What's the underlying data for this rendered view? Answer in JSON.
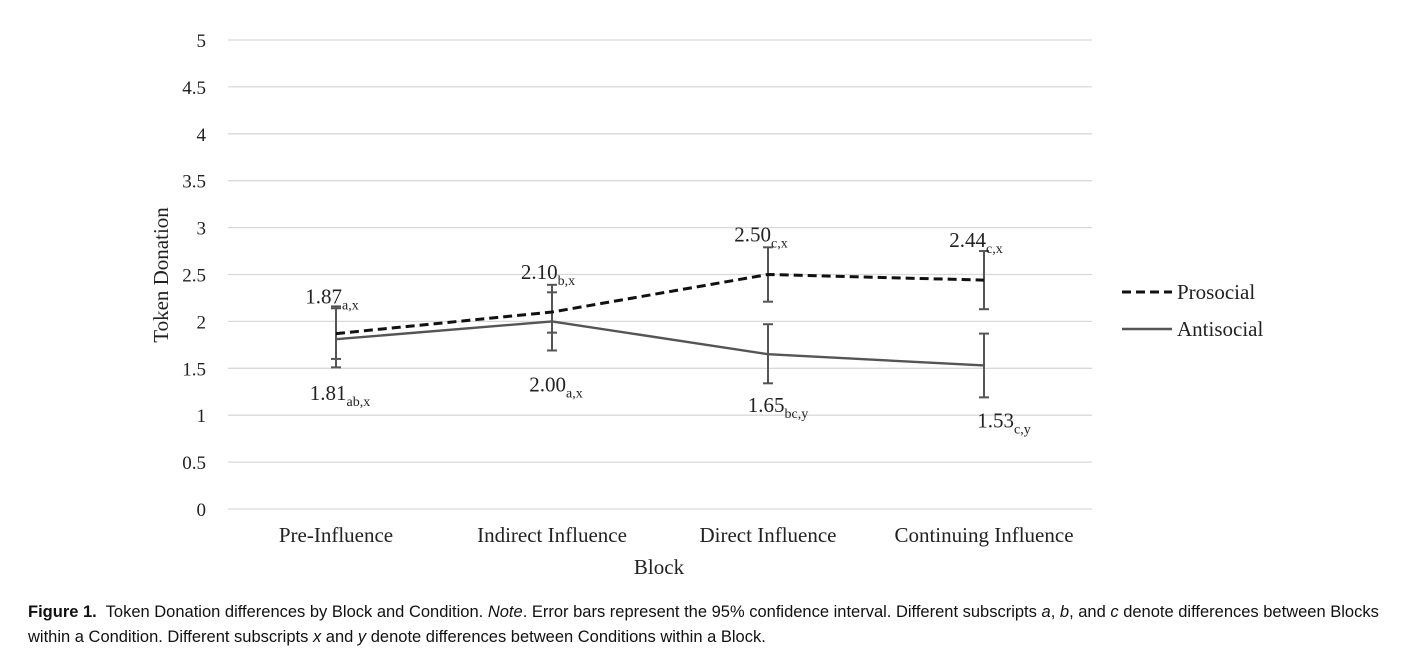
{
  "chart_data": {
    "type": "line",
    "ylabel": "Token Donation",
    "xlabel": "Block",
    "ylim": [
      0,
      5
    ],
    "yticks": [
      "0",
      "0.5",
      "1",
      "1.5",
      "2",
      "2.5",
      "3",
      "3.5",
      "4",
      "4.5",
      "5"
    ],
    "categories": [
      "Pre-Influence",
      "Indirect Influence",
      "Direct Influence",
      "Continuing Influence"
    ],
    "grid": true,
    "legend_position": "right",
    "series": [
      {
        "name": "Prosocial",
        "style": "dashed",
        "values": [
          1.87,
          2.1,
          2.5,
          2.44
        ],
        "ci_low": [
          1.6,
          1.88,
          2.21,
          2.13
        ],
        "ci_high": [
          2.14,
          2.39,
          2.79,
          2.75
        ],
        "labels": [
          {
            "value": "1.87",
            "sub": "a,x"
          },
          {
            "value": "2.10",
            "sub": "b,x"
          },
          {
            "value": "2.50",
            "sub": "c,x"
          },
          {
            "value": "2.44",
            "sub": "c,x"
          }
        ]
      },
      {
        "name": "Antisocial",
        "style": "solid",
        "values": [
          1.81,
          2.0,
          1.65,
          1.53
        ],
        "ci_low": [
          1.51,
          1.69,
          1.34,
          1.19
        ],
        "ci_high": [
          2.16,
          2.31,
          1.97,
          1.87
        ],
        "labels": [
          {
            "value": "1.81",
            "sub": "ab,x"
          },
          {
            "value": "2.00",
            "sub": "a,x"
          },
          {
            "value": "1.65",
            "sub": "bc,y"
          },
          {
            "value": "1.53",
            "sub": "c,y"
          }
        ]
      }
    ]
  },
  "caption": {
    "label": "Figure 1.",
    "text1": "Token Donation differences by Block and Condition.",
    "note": "Note",
    "text2": ". Error bars represent the 95% confidence interval. Different subscripts",
    "a": "a",
    "sep1": ",",
    "b": "b",
    "text3": ", and",
    "c": "c",
    "text4": "denote differences between Blocks within a Condition. Different subscripts",
    "x": "x",
    "and": "and",
    "y": "y",
    "text5": "denote differences between Conditions within a Block."
  }
}
